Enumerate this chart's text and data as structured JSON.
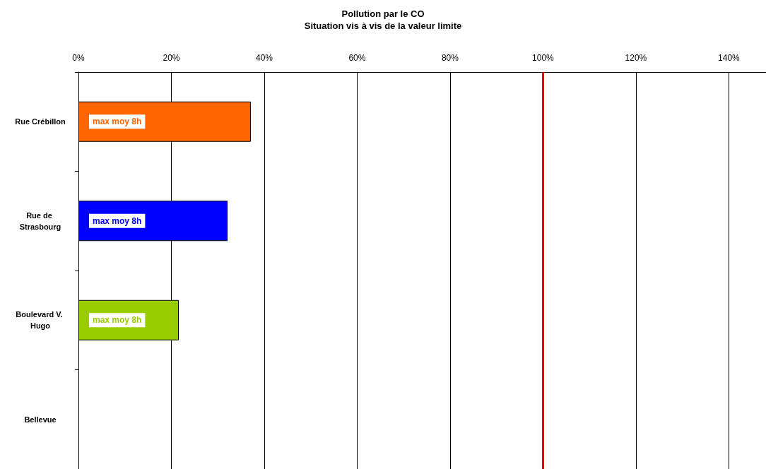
{
  "chart_data": {
    "type": "bar",
    "orientation": "horizontal",
    "title": "Pollution par le CO",
    "subtitle": "Situation vis à vis de la valeur limite",
    "categories": [
      "Rue Crébillon",
      "Rue de Strasbourg",
      "Boulevard V. Hugo",
      "Bellevue"
    ],
    "values": [
      37.1,
      32.1,
      21.6,
      null
    ],
    "colors": [
      "#ff6600",
      "#0000ff",
      "#99cc00",
      "#808080"
    ],
    "value_labels": [
      "max moy 8h",
      "max moy 8h",
      "max moy 8h",
      null
    ],
    "xlim": [
      0,
      148
    ],
    "xticks": [
      {
        "value": 0,
        "label": "0%"
      },
      {
        "value": 20,
        "label": "20%"
      },
      {
        "value": 40,
        "label": "40%"
      },
      {
        "value": 60,
        "label": "60%"
      },
      {
        "value": 80,
        "label": "80%"
      },
      {
        "value": 100,
        "label": "100%"
      },
      {
        "value": 120,
        "label": "120%"
      },
      {
        "value": 140,
        "label": "140%"
      }
    ],
    "grid": "x",
    "ref_lines": [
      {
        "axis": "x",
        "value": 100,
        "color": "#ff0000",
        "line_style": "solid"
      }
    ]
  }
}
